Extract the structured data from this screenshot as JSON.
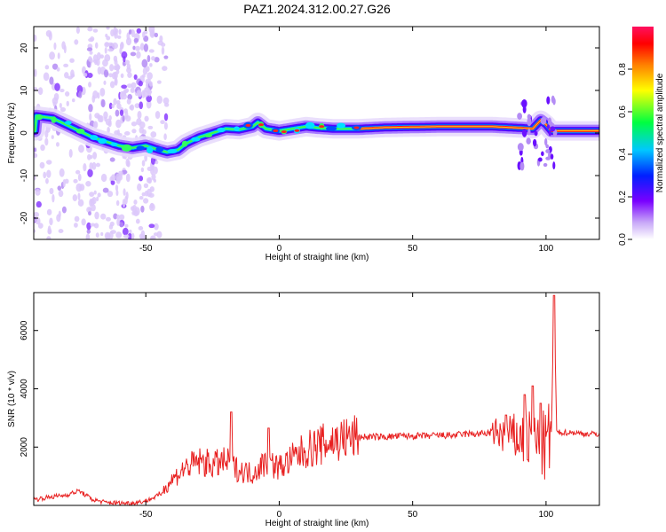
{
  "title": "PAZ1.2024.312.00.27.G26",
  "chart_data": [
    {
      "type": "heatmap",
      "xlabel": "Height of straight line (km)",
      "ylabel": "Frequency (Hz)",
      "xlim": [
        -92,
        120
      ],
      "ylim": [
        -25,
        25
      ],
      "x_ticks": [
        -50,
        0,
        50,
        100
      ],
      "y_ticks": [
        -20,
        -10,
        0,
        10,
        20
      ],
      "colorbar": {
        "label": "Normalized spectral amplitude",
        "range": [
          0,
          1
        ],
        "ticks": [
          0.0,
          0.2,
          0.4,
          0.6,
          0.8
        ],
        "colormap": [
          "#ffffff",
          "#c8a8f8",
          "#7a00ff",
          "#0020ff",
          "#00c8ff",
          "#00ff40",
          "#ffff00",
          "#ff8000",
          "#ff0000",
          "#ff1060"
        ]
      },
      "ridge": {
        "x": [
          -91,
          -85,
          -80,
          -75,
          -70,
          -65,
          -60,
          -55,
          -50,
          -45,
          -42,
          -38,
          -35,
          -30,
          -25,
          -20,
          -15,
          -10,
          -8,
          -5,
          0,
          5,
          10,
          15,
          20,
          30,
          40,
          60,
          80,
          90,
          95,
          98,
          100,
          102,
          105,
          120
        ],
        "frequency": [
          4,
          3.5,
          2,
          0.5,
          -1,
          -2,
          -3,
          -3.5,
          -3,
          -4,
          -4.5,
          -4,
          -2.5,
          -1,
          0,
          1,
          0.8,
          1.5,
          2.5,
          1,
          0.5,
          1,
          1.5,
          1.2,
          1,
          1,
          1.3,
          1.5,
          1.5,
          1.2,
          1,
          3,
          2,
          0.5,
          0.5,
          0.5
        ]
      }
    },
    {
      "type": "line",
      "xlabel": "Height of straight line (km)",
      "ylabel": "SNR (10 * v/v)",
      "xlim": [
        -92,
        120
      ],
      "ylim": [
        0,
        7300
      ],
      "x_ticks": [
        -50,
        0,
        50,
        100
      ],
      "y_ticks": [
        2000,
        4000,
        6000
      ],
      "color": "#e82020",
      "x": [
        -92,
        -85,
        -80,
        -75,
        -70,
        -65,
        -60,
        -55,
        -50,
        -45,
        -40,
        -35,
        -30,
        -25,
        -20,
        -15,
        -10,
        -5,
        0,
        5,
        10,
        15,
        20,
        25,
        30,
        35,
        40,
        45,
        50,
        55,
        60,
        65,
        70,
        75,
        80,
        85,
        90,
        95,
        100,
        102,
        103,
        104,
        106,
        110,
        115,
        120
      ],
      "y": [
        200,
        300,
        350,
        500,
        200,
        100,
        80,
        80,
        150,
        350,
        900,
        1300,
        1500,
        1400,
        1500,
        1200,
        1100,
        1500,
        1300,
        1600,
        1900,
        2050,
        2200,
        2300,
        2350,
        2350,
        2350,
        2380,
        2380,
        2380,
        2400,
        2400,
        2450,
        2450,
        2500,
        2400,
        2300,
        2200,
        2000,
        2500,
        7200,
        2500,
        2500,
        2500,
        2450,
        2450
      ],
      "spikes": [
        {
          "x": -18,
          "y": 3200
        },
        {
          "x": -4,
          "y": 2650
        },
        {
          "x": 85,
          "y": 3100
        },
        {
          "x": 92,
          "y": 3800
        },
        {
          "x": 95,
          "y": 4100
        },
        {
          "x": 98,
          "y": 3500
        },
        {
          "x": 103,
          "y": 7200
        }
      ]
    }
  ]
}
